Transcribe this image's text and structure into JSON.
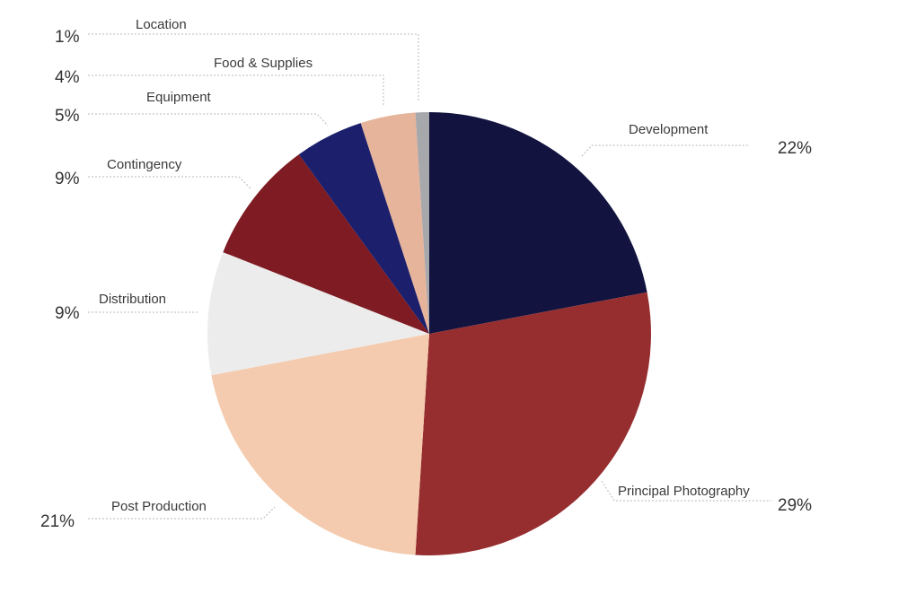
{
  "chart_data": {
    "type": "pie",
    "title": "",
    "slices": [
      {
        "label": "Development",
        "percent_label": "22%",
        "value": 22,
        "color": "#12143f"
      },
      {
        "label": "Principal Photography",
        "percent_label": "29%",
        "value": 29,
        "color": "#962e30"
      },
      {
        "label": "Post Production",
        "percent_label": "21%",
        "value": 21,
        "color": "#f4cbae"
      },
      {
        "label": "Distribution",
        "percent_label": "9%",
        "value": 9,
        "color": "#ececec"
      },
      {
        "label": "Contingency",
        "percent_label": "9%",
        "value": 9,
        "color": "#7f1b22"
      },
      {
        "label": "Equipment",
        "percent_label": "5%",
        "value": 5,
        "color": "#1c1f6b"
      },
      {
        "label": "Food & Supplies",
        "percent_label": "4%",
        "value": 4,
        "color": "#e6b49b"
      },
      {
        "label": "Location",
        "percent_label": "1%",
        "value": 1,
        "color": "#a7a8ab"
      }
    ]
  }
}
